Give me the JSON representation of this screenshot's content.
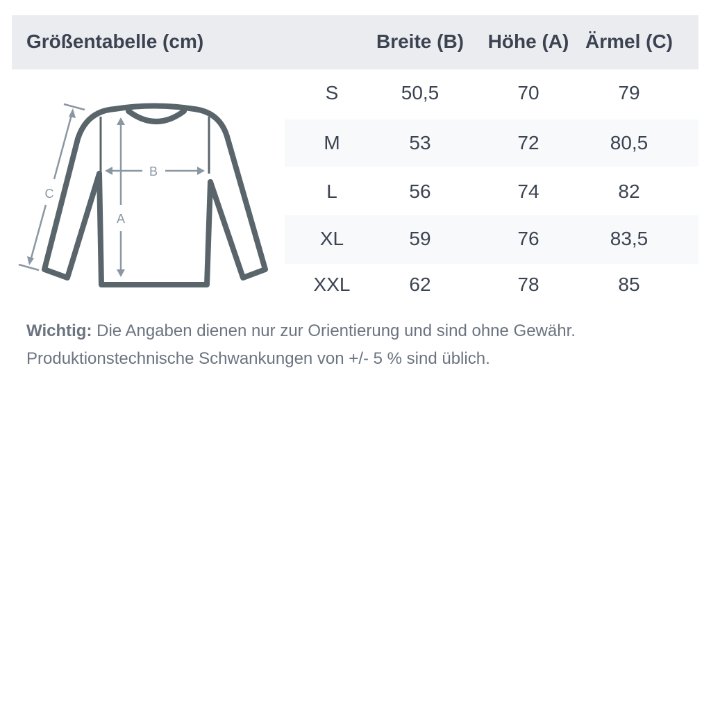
{
  "table": {
    "title": "Größentabelle (cm)",
    "columns": [
      "Breite (B)",
      "Höhe (A)",
      "Ärmel (C)"
    ],
    "rows": [
      {
        "size": "S",
        "values": [
          "50,5",
          "70",
          "79"
        ]
      },
      {
        "size": "M",
        "values": [
          "53",
          "72",
          "80,5"
        ]
      },
      {
        "size": "L",
        "values": [
          "56",
          "74",
          "82"
        ]
      },
      {
        "size": "XL",
        "values": [
          "59",
          "76",
          "83,5"
        ]
      },
      {
        "size": "XXL",
        "values": [
          "62",
          "78",
          "85"
        ]
      }
    ]
  },
  "diagram": {
    "labels": {
      "width": "B",
      "height": "A",
      "sleeve": "C"
    },
    "icon": "sweater-icon",
    "colors": {
      "outline": "#59656b",
      "arrows": "#8a97a3"
    }
  },
  "note": {
    "bold": "Wichtig:",
    "line1": " Die Angaben dienen nur zur Orientierung und sind ohne Gewähr.",
    "line2": "Produktionstechnische Schwankungen von +/- 5 % sind üblich."
  },
  "colors": {
    "header_bg": "#ebecf0",
    "stripe_bg": "#f8f9fb",
    "text": "#3b4351"
  }
}
